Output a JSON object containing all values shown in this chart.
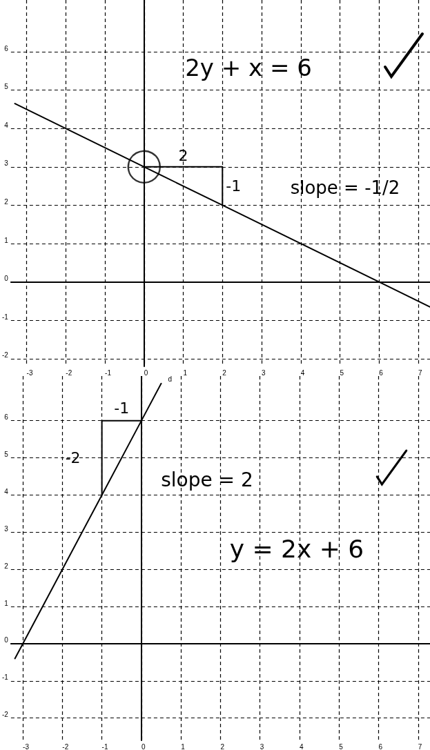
{
  "chart_data": [
    {
      "type": "line",
      "xlim": [
        -3.4,
        7.3
      ],
      "ylim": [
        -2.2,
        7.35
      ],
      "xticks": [
        -3,
        -2,
        -1,
        0,
        1,
        2,
        3,
        4,
        5,
        6,
        7
      ],
      "yticks": [
        -2,
        -1,
        0,
        1,
        2,
        3,
        4,
        5,
        6
      ],
      "grid": true,
      "legend": false,
      "marker": "none",
      "line_style": "solid",
      "series": [
        {
          "color": "#000000",
          "x": [
            -3.3,
            0,
            2,
            6,
            7.3
          ],
          "values": [
            4.65,
            3,
            2,
            0,
            -0.65
          ]
        },
        {
          "color": "#000000",
          "x": [
            0,
            2,
            2
          ],
          "values": [
            3,
            3,
            2
          ]
        },
        {
          "type": "scatter",
          "marker": "circle",
          "color": "#000000",
          "x": [
            0
          ],
          "values": [
            3
          ]
        }
      ],
      "annotations": [
        "2y + x = 6",
        {
          "text": "2",
          "x": 1,
          "y": 3
        },
        {
          "text": "-1",
          "x": 2,
          "y": 2.5
        },
        "slope = -1/2"
      ]
    },
    {
      "type": "line",
      "xlim": [
        -3.3,
        7.3
      ],
      "ylim": [
        -2.6,
        7.2
      ],
      "xticks": [
        -3,
        -2,
        -1,
        0,
        1,
        2,
        3,
        4,
        5,
        6,
        7
      ],
      "yticks": [
        -2,
        -1,
        0,
        1,
        2,
        3,
        4,
        5,
        6
      ],
      "grid": true,
      "legend": false,
      "marker": "none",
      "line_style": "solid",
      "series": [
        {
          "name": "d",
          "color": "#000000",
          "x": [
            -3.2,
            -3,
            -2,
            -1,
            0,
            0.5
          ],
          "values": [
            -0.4,
            0,
            2,
            4,
            6,
            7
          ]
        },
        {
          "color": "#000000",
          "x": [
            0,
            -1,
            -1
          ],
          "values": [
            6,
            6,
            4
          ]
        }
      ],
      "annotations": [
        {
          "text": "-1",
          "x": -0.5,
          "y": 6
        },
        {
          "text": "-2",
          "x": -1,
          "y": 5
        },
        "slope = 2",
        "y = 2x + 6"
      ]
    }
  ]
}
